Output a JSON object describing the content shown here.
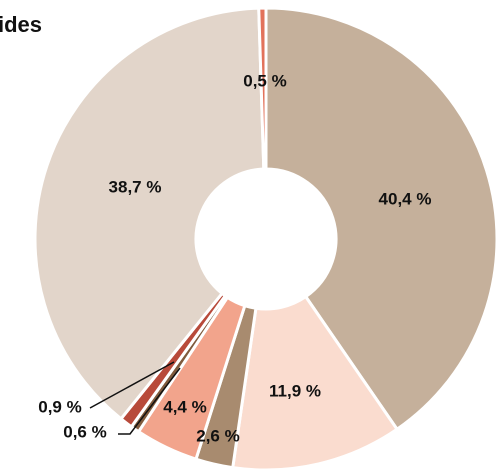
{
  "chart_data": {
    "type": "donut",
    "title": "ides",
    "categories": [
      null,
      null,
      null,
      null,
      null,
      null,
      null,
      null
    ],
    "values": [
      40.4,
      11.9,
      2.6,
      4.4,
      0.6,
      0.9,
      38.7,
      0.5
    ],
    "value_labels": [
      "40,4 %",
      "11,9 %",
      "2,6 %",
      "4,4 %",
      "0,6 %",
      "0,9 %",
      "38,7 %",
      "0,5 %"
    ],
    "colors": [
      "#c5b09b",
      "#fadccf",
      "#a88b6f",
      "#f2a48c",
      "#7f5a3c",
      "#b84a3a",
      "#e2d5ca",
      "#e2725b"
    ]
  }
}
